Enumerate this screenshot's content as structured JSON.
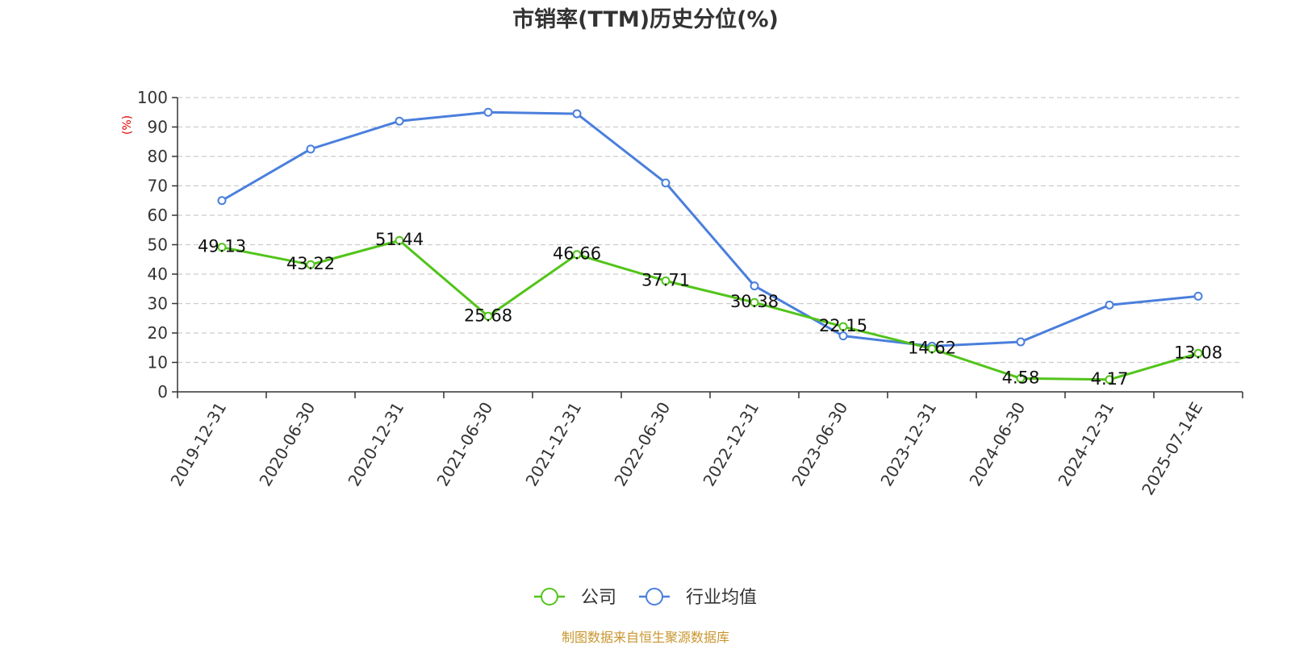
{
  "chart_data": {
    "type": "line",
    "title": "市销率(TTM)历史分位(%)",
    "ylabel": "(%)",
    "ylim": [
      0,
      100
    ],
    "yticks": [
      0,
      10,
      20,
      30,
      40,
      50,
      60,
      70,
      80,
      90,
      100
    ],
    "categories": [
      "2019-12-31",
      "2020-06-30",
      "2020-12-31",
      "2021-06-30",
      "2021-12-31",
      "2022-06-30",
      "2022-12-31",
      "2023-06-30",
      "2023-12-31",
      "2024-06-30",
      "2024-12-31",
      "2025-07-14E"
    ],
    "series": [
      {
        "name": "公司",
        "color": "#52c41a",
        "values": [
          49.13,
          43.22,
          51.44,
          25.68,
          46.66,
          37.71,
          30.38,
          22.15,
          14.62,
          4.58,
          4.17,
          13.08
        ],
        "labels": [
          "49.13",
          "43.22",
          "51.44",
          "25.68",
          "46.66",
          "37.71",
          "30.38",
          "22.15",
          "14.62",
          "4.58",
          "4.17",
          "13.08"
        ]
      },
      {
        "name": "行业均值",
        "color": "#4a7fdc",
        "values": [
          65,
          82.5,
          92,
          95,
          94.5,
          71,
          36,
          19,
          15.5,
          17,
          29.5,
          32.5
        ]
      }
    ],
    "grid": true,
    "grid_style": "dashed-horizontal",
    "legend_position": "bottom-center",
    "source": "制图数据来自恒生聚源数据库"
  }
}
